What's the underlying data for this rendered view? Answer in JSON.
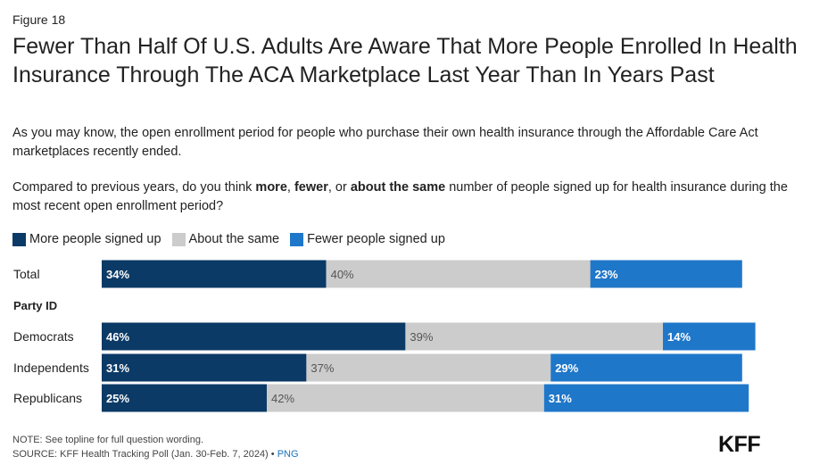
{
  "figure_label": "Figure 18",
  "title": "Fewer Than Half Of U.S. Adults Are Aware That More People Enrolled In Health Insurance Through The ACA Marketplace Last Year Than In Years Past",
  "subtitle": "As you may know, the open enrollment period for people who purchase their own health insurance through the Affordable Care Act marketplaces recently ended.",
  "question": {
    "part1": "Compared to previous years, do you think ",
    "more": "more",
    "sep1": ", ",
    "fewer": "fewer",
    "sep2": ", or ",
    "same": "about the same",
    "part2": " number of people signed up for health insurance during the most recent open enrollment period?"
  },
  "colors": {
    "more": "#0b3a66",
    "same": "#cccccc",
    "fewer": "#1f77c9"
  },
  "chart_data": {
    "type": "bar",
    "orientation": "horizontal",
    "stacked": true,
    "categories": [
      "Total",
      "Democrats",
      "Independents",
      "Republicans"
    ],
    "group_heading": "Party ID",
    "series": [
      {
        "name": "More people signed up",
        "values": [
          34,
          46,
          31,
          25
        ]
      },
      {
        "name": "About the same",
        "values": [
          40,
          39,
          37,
          42
        ]
      },
      {
        "name": "Fewer people signed up",
        "values": [
          23,
          14,
          29,
          31
        ]
      }
    ],
    "value_suffix": "%",
    "xlim": [
      0,
      100
    ],
    "legend_position": "top-left",
    "grid": false
  },
  "footer": {
    "note": "NOTE: See topline for full question wording.",
    "source": "SOURCE: KFF Health Tracking Poll (Jan. 30-Feb. 7, 2024)",
    "bullet": " • ",
    "link": "PNG"
  },
  "logo_text": "KFF"
}
